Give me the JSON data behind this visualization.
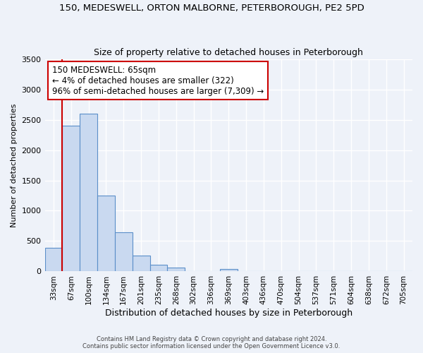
{
  "title": "150, MEDESWELL, ORTON MALBORNE, PETERBOROUGH, PE2 5PD",
  "subtitle": "Size of property relative to detached houses in Peterborough",
  "xlabel": "Distribution of detached houses by size in Peterborough",
  "ylabel": "Number of detached properties",
  "bar_color": "#c9d9f0",
  "bar_edge_color": "#5b8fc9",
  "categories": [
    "33sqm",
    "67sqm",
    "100sqm",
    "134sqm",
    "167sqm",
    "201sqm",
    "235sqm",
    "268sqm",
    "302sqm",
    "336sqm",
    "369sqm",
    "403sqm",
    "436sqm",
    "470sqm",
    "504sqm",
    "537sqm",
    "571sqm",
    "604sqm",
    "638sqm",
    "672sqm",
    "705sqm"
  ],
  "values": [
    390,
    2400,
    2600,
    1250,
    640,
    260,
    105,
    60,
    0,
    0,
    40,
    0,
    0,
    0,
    0,
    0,
    0,
    0,
    0,
    0,
    0
  ],
  "ylim": [
    0,
    3500
  ],
  "yticks": [
    0,
    500,
    1000,
    1500,
    2000,
    2500,
    3000,
    3500
  ],
  "vline_x_index": 1,
  "vline_color": "#cc0000",
  "annotation_title": "150 MEDESWELL: 65sqm",
  "annotation_line1": "← 4% of detached houses are smaller (322)",
  "annotation_line2": "96% of semi-detached houses are larger (7,309) →",
  "annotation_box_color": "#ffffff",
  "annotation_box_edge": "#cc0000",
  "footer1": "Contains HM Land Registry data © Crown copyright and database right 2024.",
  "footer2": "Contains public sector information licensed under the Open Government Licence v3.0.",
  "bg_color": "#eef2f9",
  "grid_color": "#ffffff"
}
